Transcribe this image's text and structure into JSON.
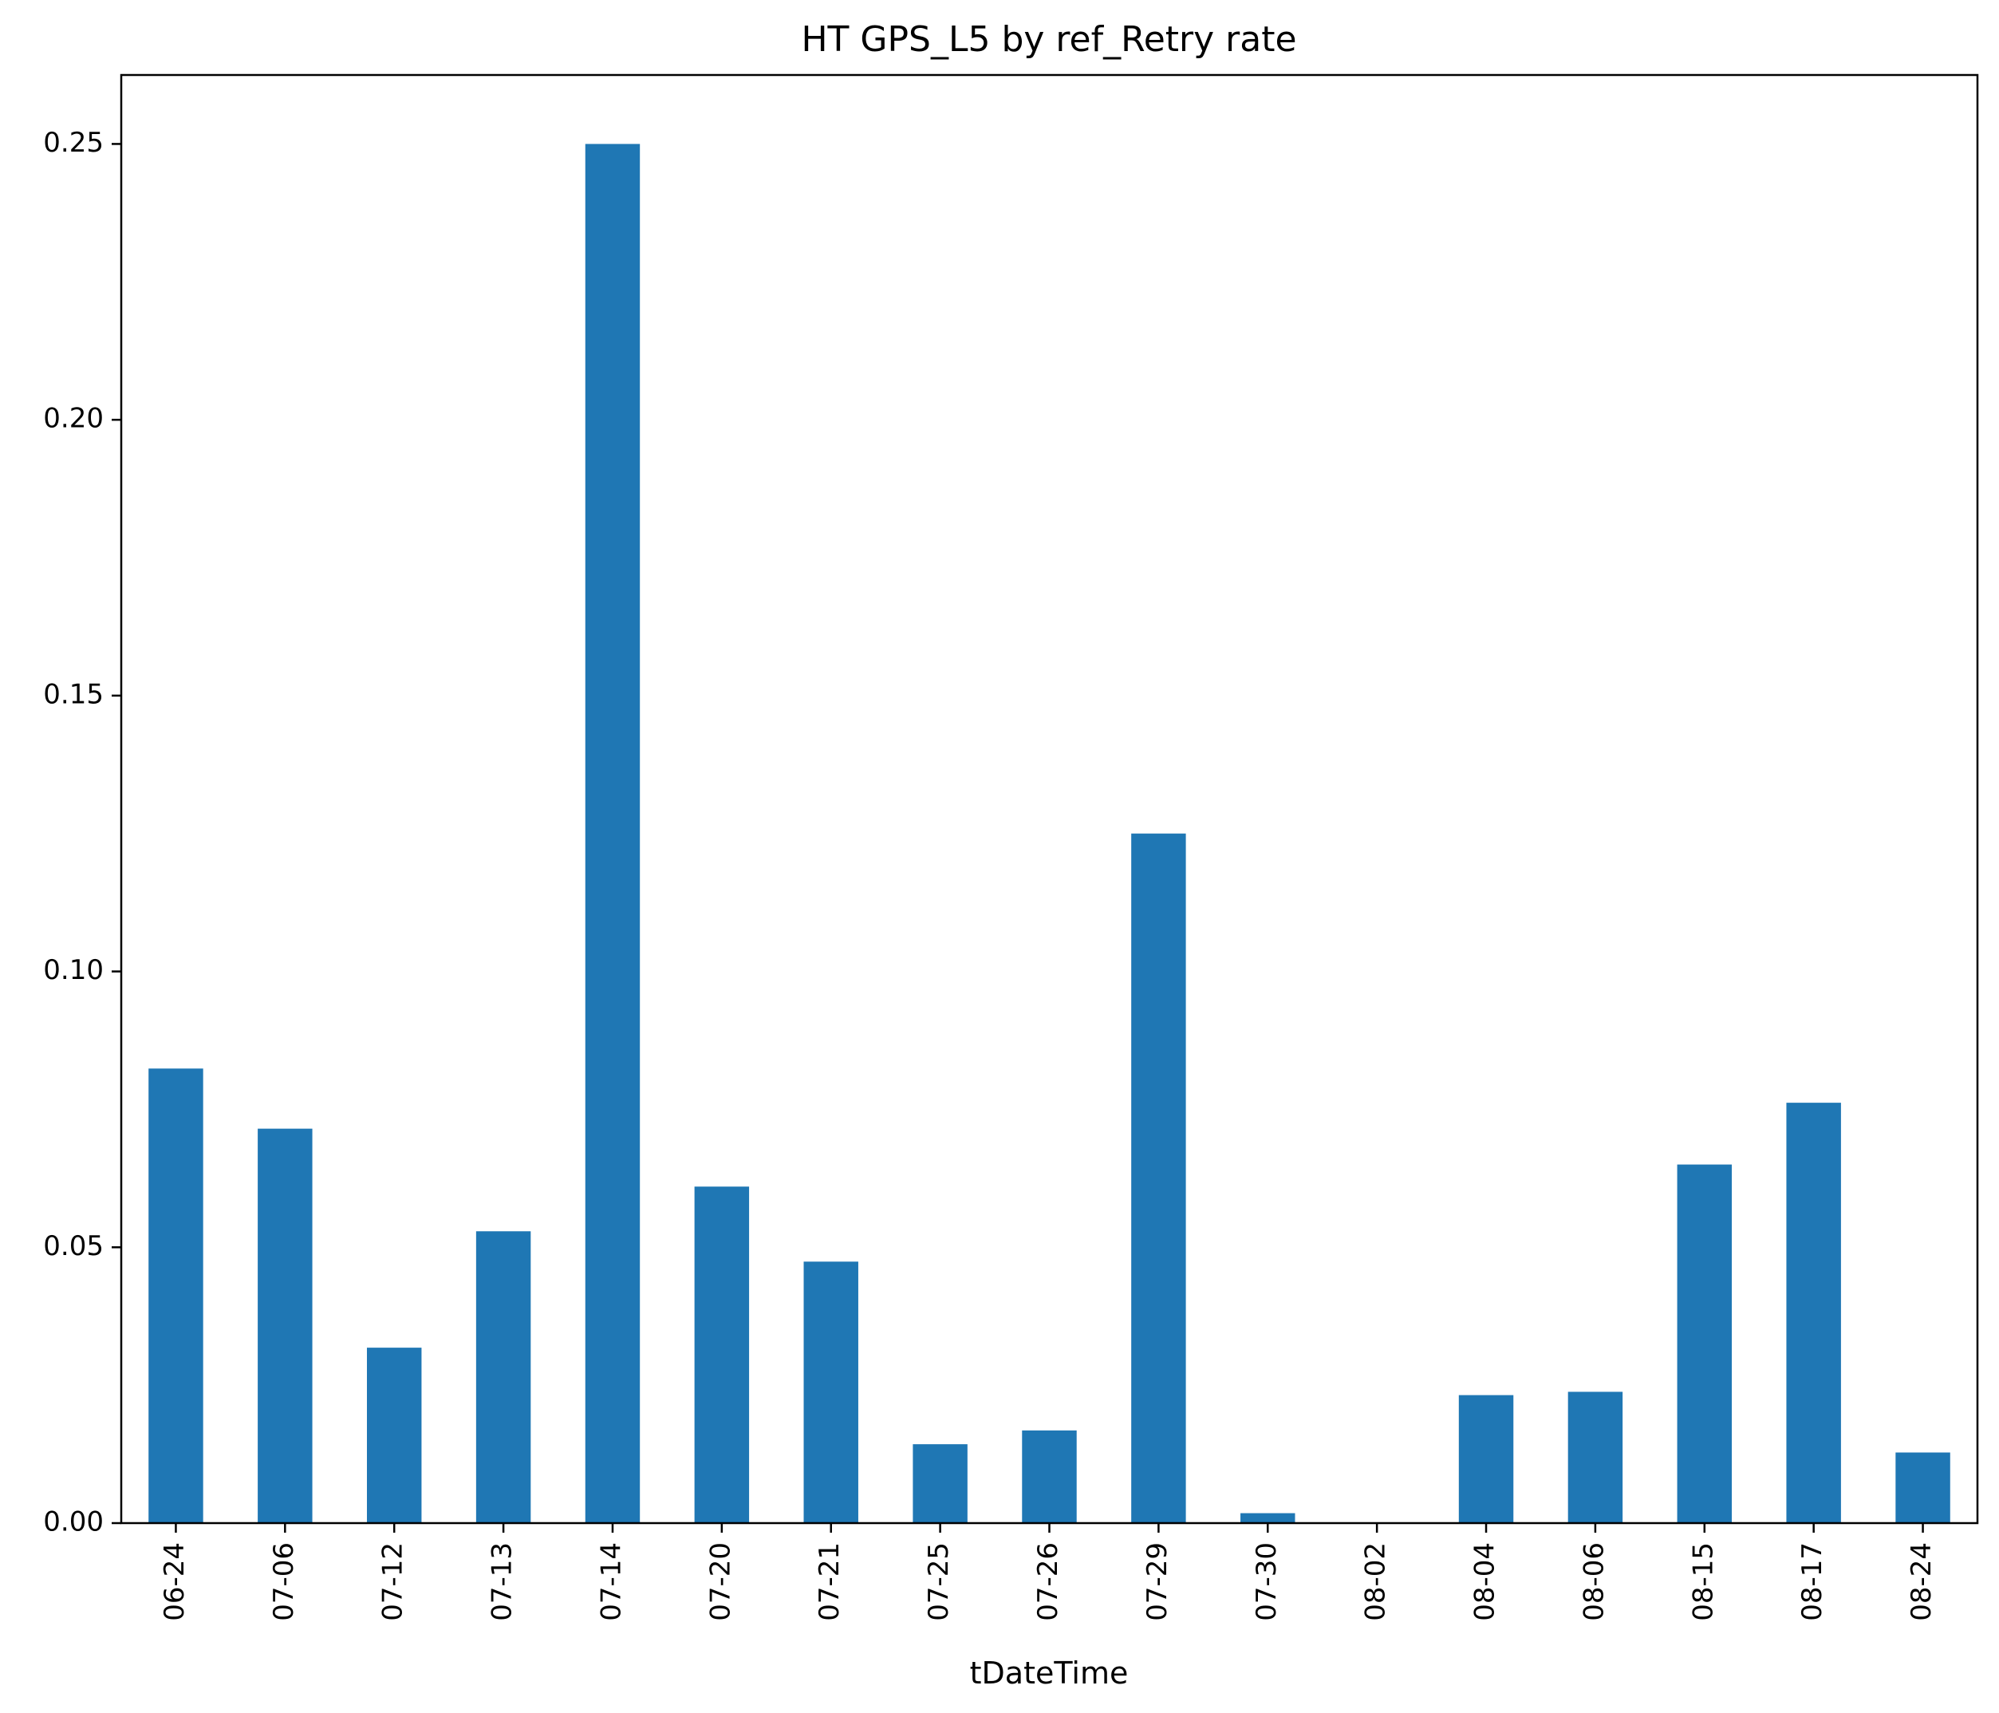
{
  "chart_data": {
    "type": "bar",
    "title": "HT GPS_L5 by ref_Retry rate",
    "xlabel": "tDateTime",
    "ylabel": "",
    "categories": [
      "06-24",
      "07-06",
      "07-12",
      "07-13",
      "07-14",
      "07-20",
      "07-21",
      "07-25",
      "07-26",
      "07-29",
      "07-30",
      "08-02",
      "08-04",
      "08-06",
      "08-15",
      "08-17",
      "08-24"
    ],
    "values": [
      0.0824,
      0.0715,
      0.0318,
      0.0529,
      0.25,
      0.061,
      0.0474,
      0.0143,
      0.0168,
      0.125,
      0.0018,
      0.0,
      0.0232,
      0.0238,
      0.065,
      0.0762,
      0.0128
    ],
    "yticks": [
      0.0,
      0.05,
      0.1,
      0.15,
      0.2,
      0.25
    ],
    "ytick_labels": [
      "0.00",
      "0.05",
      "0.10",
      "0.15",
      "0.20",
      "0.25"
    ],
    "ylim": [
      0,
      0.2625
    ],
    "bar_color": "#1f77b4",
    "grid": false,
    "legend": "none"
  }
}
